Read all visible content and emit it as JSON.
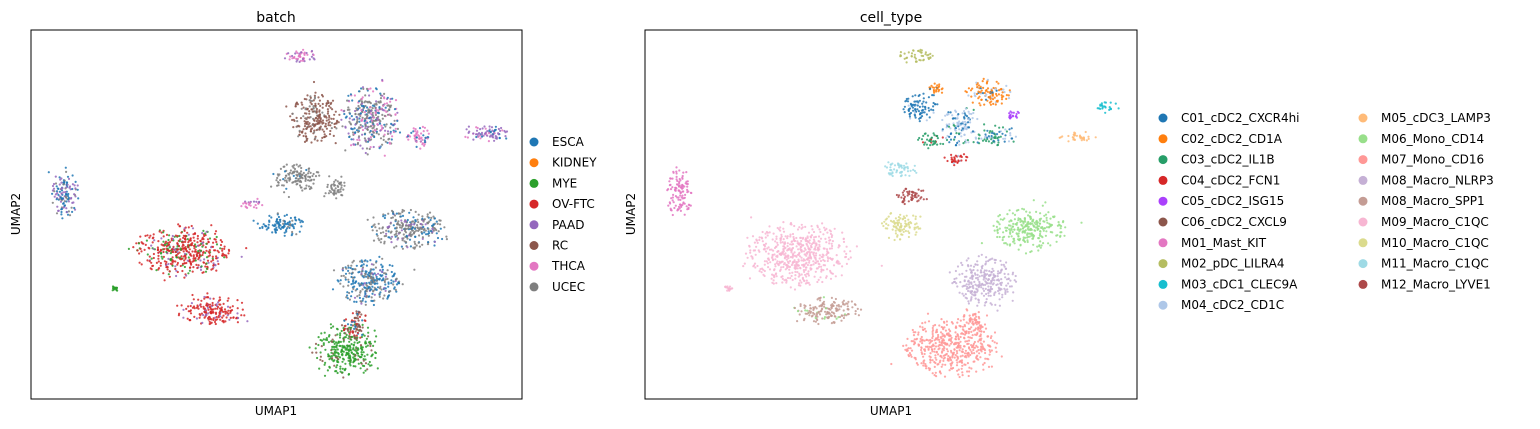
{
  "chart_data": [
    {
      "type": "scatter",
      "title": "batch",
      "xlabel": "UMAP1",
      "ylabel": "UMAP2",
      "xlim": [
        0,
        100
      ],
      "ylim": [
        0,
        100
      ],
      "grid": false,
      "ticks": false,
      "legend_position": "right",
      "legend_columns": 1,
      "series": [
        {
          "name": "ESCA",
          "color": "#1f77b4"
        },
        {
          "name": "KIDNEY",
          "color": "#ff7f0e"
        },
        {
          "name": "MYE",
          "color": "#2ca02c"
        },
        {
          "name": "OV-FTC",
          "color": "#d62728"
        },
        {
          "name": "PAAD",
          "color": "#9467bd"
        },
        {
          "name": "RC",
          "color": "#8c564b"
        },
        {
          "name": "THCA",
          "color": "#e377c2"
        },
        {
          "name": "UCEC",
          "color": "#7f7f7f"
        }
      ],
      "clusters": [
        {
          "x": 55,
          "y": 93,
          "rx": 3.5,
          "ry": 1.8,
          "mix": [
            [
              6,
              0.6
            ],
            [
              4,
              0.4
            ]
          ]
        },
        {
          "x": 58,
          "y": 76,
          "rx": 4.5,
          "ry": 6.5,
          "mix": [
            [
              5,
              0.85
            ],
            [
              7,
              0.15
            ]
          ]
        },
        {
          "x": 69,
          "y": 76,
          "rx": 5.5,
          "ry": 8.5,
          "mix": [
            [
              7,
              0.45
            ],
            [
              0,
              0.25
            ],
            [
              4,
              0.15
            ],
            [
              6,
              0.15
            ]
          ]
        },
        {
          "x": 79,
          "y": 71,
          "rx": 2.5,
          "ry": 3,
          "mix": [
            [
              6,
              0.8
            ],
            [
              0,
              0.2
            ]
          ]
        },
        {
          "x": 93,
          "y": 72,
          "rx": 4.5,
          "ry": 2.2,
          "mix": [
            [
              4,
              0.5
            ],
            [
              0,
              0.3
            ],
            [
              6,
              0.2
            ]
          ]
        },
        {
          "x": 54,
          "y": 60,
          "rx": 4.5,
          "ry": 3.5,
          "mix": [
            [
              7,
              0.9
            ],
            [
              0,
              0.1
            ]
          ]
        },
        {
          "x": 62,
          "y": 57,
          "rx": 2.5,
          "ry": 2.5,
          "mix": [
            [
              7,
              1.0
            ]
          ]
        },
        {
          "x": 45,
          "y": 53,
          "rx": 2.5,
          "ry": 1.3,
          "mix": [
            [
              6,
              0.9
            ],
            [
              4,
              0.1
            ]
          ]
        },
        {
          "x": 51,
          "y": 47,
          "rx": 4.5,
          "ry": 2.8,
          "mix": [
            [
              0,
              0.9
            ],
            [
              7,
              0.1
            ]
          ]
        },
        {
          "x": 77,
          "y": 46,
          "rx": 7,
          "ry": 5,
          "mix": [
            [
              7,
              0.6
            ],
            [
              0,
              0.3
            ],
            [
              4,
              0.1
            ]
          ]
        },
        {
          "x": 7,
          "y": 56,
          "rx": 2.5,
          "ry": 6.5,
          "mix": [
            [
              0,
              0.4
            ],
            [
              4,
              0.4
            ],
            [
              7,
              0.2
            ]
          ]
        },
        {
          "x": 31,
          "y": 40,
          "rx": 9,
          "ry": 6.5,
          "mix": [
            [
              3,
              0.7
            ],
            [
              2,
              0.2
            ],
            [
              4,
              0.1
            ]
          ]
        },
        {
          "x": 69,
          "y": 32,
          "rx": 6,
          "ry": 6,
          "mix": [
            [
              0,
              0.55
            ],
            [
              7,
              0.35
            ],
            [
              4,
              0.1
            ]
          ]
        },
        {
          "x": 37,
          "y": 24,
          "rx": 6.5,
          "ry": 3.5,
          "mix": [
            [
              3,
              0.85
            ],
            [
              4,
              0.15
            ]
          ]
        },
        {
          "x": 64,
          "y": 13,
          "rx": 6,
          "ry": 6.5,
          "mix": [
            [
              2,
              0.9
            ],
            [
              5,
              0.1
            ]
          ]
        },
        {
          "x": 66,
          "y": 20,
          "rx": 2.5,
          "ry": 4,
          "mix": [
            [
              5,
              0.5
            ],
            [
              3,
              0.3
            ],
            [
              0,
              0.2
            ]
          ]
        },
        {
          "x": 17,
          "y": 30,
          "rx": 0.8,
          "ry": 0.6,
          "mix": [
            [
              2,
              1.0
            ]
          ]
        }
      ]
    },
    {
      "type": "scatter",
      "title": "cell_type",
      "xlabel": "UMAP1",
      "ylabel": "UMAP2",
      "xlim": [
        0,
        100
      ],
      "ylim": [
        0,
        100
      ],
      "grid": false,
      "ticks": false,
      "legend_position": "right",
      "legend_columns": 2,
      "series": [
        {
          "name": "C01_cDC2_CXCR4hi",
          "color": "#1f77b4"
        },
        {
          "name": "C02_cDC2_CD1A",
          "color": "#ff7f0e"
        },
        {
          "name": "C03_cDC2_IL1B",
          "color": "#279e68"
        },
        {
          "name": "C04_cDC2_FCN1",
          "color": "#d62728"
        },
        {
          "name": "C05_cDC2_ISG15",
          "color": "#aa40fc"
        },
        {
          "name": "C06_cDC2_CXCL9",
          "color": "#8c564b"
        },
        {
          "name": "M01_Mast_KIT",
          "color": "#e377c2"
        },
        {
          "name": "M02_pDC_LILRA4",
          "color": "#b5bd61"
        },
        {
          "name": "M03_cDC1_CLEC9A",
          "color": "#17becf"
        },
        {
          "name": "M04_cDC2_CD1C",
          "color": "#aec7e8"
        },
        {
          "name": "M05_cDC3_LAMP3",
          "color": "#ffbb78"
        },
        {
          "name": "M06_Mono_CD14",
          "color": "#98df8a"
        },
        {
          "name": "M07_Mono_CD16",
          "color": "#ff9896"
        },
        {
          "name": "M08_Macro_NLRP3",
          "color": "#c5b0d5"
        },
        {
          "name": "M08_Macro_SPP1",
          "color": "#c49c94"
        },
        {
          "name": "M09_Macro_C1QC",
          "color": "#f7b6d2"
        },
        {
          "name": "M10_Macro_C1QC",
          "color": "#dbdb8d"
        },
        {
          "name": "M11_Macro_C1QC",
          "color": "#9edae5"
        },
        {
          "name": "M12_Macro_LYVE1",
          "color": "#ad494a"
        }
      ],
      "clusters": [
        {
          "x": 55,
          "y": 93,
          "rx": 3.5,
          "ry": 1.8,
          "mix": [
            [
              7,
              1.0
            ]
          ]
        },
        {
          "x": 56,
          "y": 79,
          "rx": 3.5,
          "ry": 3.5,
          "mix": [
            [
              0,
              0.9
            ],
            [
              9,
              0.1
            ]
          ]
        },
        {
          "x": 59,
          "y": 84,
          "rx": 2.5,
          "ry": 1.5,
          "mix": [
            [
              1,
              0.9
            ],
            [
              0,
              0.1
            ]
          ]
        },
        {
          "x": 70,
          "y": 83,
          "rx": 4.5,
          "ry": 3.5,
          "mix": [
            [
              1,
              0.7
            ],
            [
              9,
              0.2
            ],
            [
              0,
              0.1
            ]
          ]
        },
        {
          "x": 64,
          "y": 74,
          "rx": 3.5,
          "ry": 5,
          "mix": [
            [
              9,
              0.5
            ],
            [
              0,
              0.3
            ],
            [
              2,
              0.2
            ]
          ]
        },
        {
          "x": 58,
          "y": 70,
          "rx": 3,
          "ry": 2,
          "mix": [
            [
              2,
              0.9
            ],
            [
              3,
              0.1
            ]
          ]
        },
        {
          "x": 71,
          "y": 71,
          "rx": 3.5,
          "ry": 3,
          "mix": [
            [
              2,
              0.5
            ],
            [
              9,
              0.3
            ],
            [
              0,
              0.2
            ]
          ]
        },
        {
          "x": 63,
          "y": 65,
          "rx": 2.5,
          "ry": 2,
          "mix": [
            [
              3,
              0.8
            ],
            [
              9,
              0.2
            ]
          ]
        },
        {
          "x": 75,
          "y": 77,
          "rx": 1.2,
          "ry": 1.2,
          "mix": [
            [
              4,
              1.0
            ]
          ]
        },
        {
          "x": 94,
          "y": 79,
          "rx": 2.3,
          "ry": 1.5,
          "mix": [
            [
              8,
              1.0
            ]
          ]
        },
        {
          "x": 88,
          "y": 71,
          "rx": 4,
          "ry": 1.2,
          "mix": [
            [
              10,
              1.0
            ]
          ]
        },
        {
          "x": 52,
          "y": 62,
          "rx": 3,
          "ry": 2.5,
          "mix": [
            [
              17,
              1.0
            ]
          ]
        },
        {
          "x": 54,
          "y": 55,
          "rx": 3,
          "ry": 2.5,
          "mix": [
            [
              18,
              1.0
            ]
          ]
        },
        {
          "x": 52,
          "y": 47,
          "rx": 4,
          "ry": 3.5,
          "mix": [
            [
              16,
              1.0
            ]
          ]
        },
        {
          "x": 78,
          "y": 46,
          "rx": 7,
          "ry": 5.5,
          "mix": [
            [
              11,
              1.0
            ]
          ]
        },
        {
          "x": 69,
          "y": 32,
          "rx": 6,
          "ry": 6.5,
          "mix": [
            [
              13,
              1.0
            ]
          ]
        },
        {
          "x": 7,
          "y": 56,
          "rx": 2.5,
          "ry": 6.5,
          "mix": [
            [
              6,
              1.0
            ]
          ]
        },
        {
          "x": 31,
          "y": 39,
          "rx": 10,
          "ry": 8,
          "mix": [
            [
              15,
              1.0
            ]
          ]
        },
        {
          "x": 37,
          "y": 24,
          "rx": 6.5,
          "ry": 3.5,
          "mix": [
            [
              14,
              0.9
            ],
            [
              11,
              0.1
            ]
          ]
        },
        {
          "x": 62,
          "y": 14,
          "rx": 9,
          "ry": 7.5,
          "mix": [
            [
              12,
              1.0
            ]
          ]
        },
        {
          "x": 67,
          "y": 21,
          "rx": 2.5,
          "ry": 3,
          "mix": [
            [
              12,
              1.0
            ]
          ]
        },
        {
          "x": 17,
          "y": 30,
          "rx": 0.8,
          "ry": 0.6,
          "mix": [
            [
              15,
              1.0
            ]
          ]
        }
      ]
    }
  ]
}
